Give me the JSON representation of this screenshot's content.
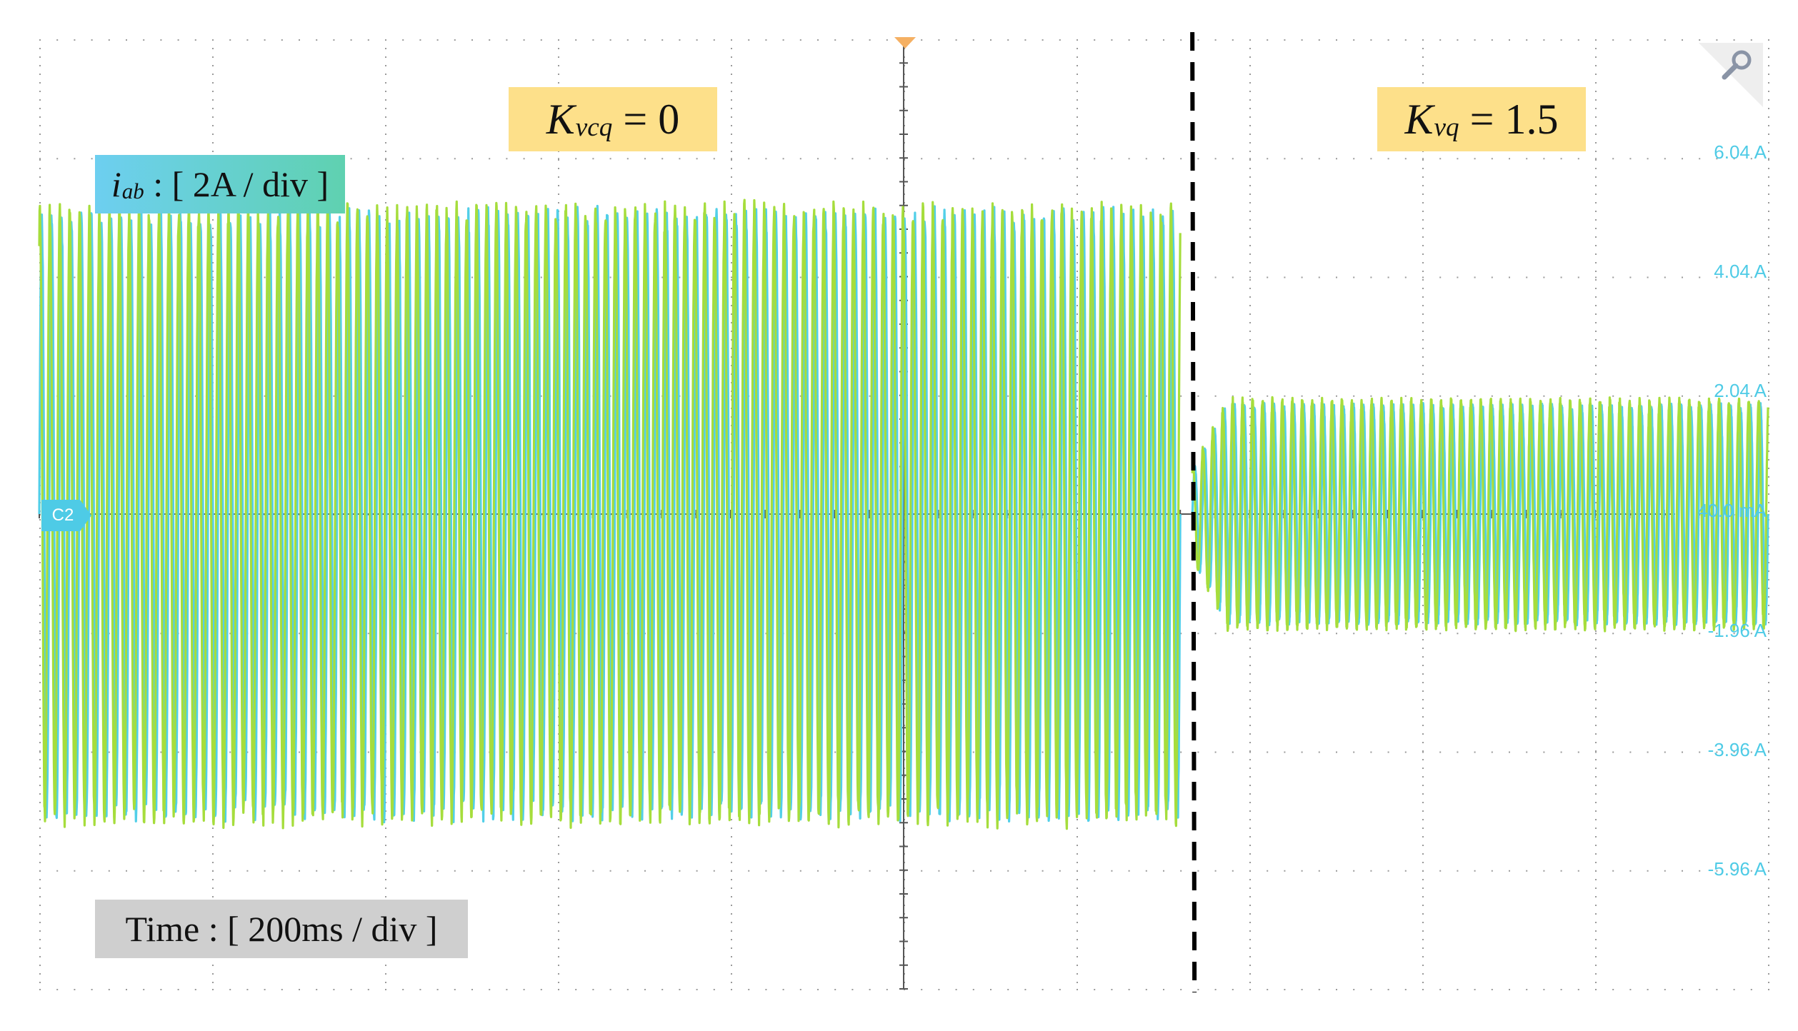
{
  "chart_data": {
    "type": "line",
    "title": "",
    "xlabel": "",
    "ylabel": "",
    "time_scale_label": "Time : [ 200ms / div ]",
    "current_scale": {
      "symbol": "i",
      "subscript": "ab",
      "rest": " : [ 2A / div ]"
    },
    "channel_label": "C2",
    "y_tick_labels": [
      "6.04 A",
      "4.04 A",
      "2.04 A",
      "40.0 mA",
      "-1.96 A",
      "-3.96 A",
      "-5.96 A"
    ],
    "y_tick_values": [
      6.04,
      4.04,
      2.04,
      0.04,
      -1.96,
      -3.96,
      -5.96
    ],
    "ylim": [
      -7.96,
      8.04
    ],
    "xlim_div": [
      -5,
      5
    ],
    "grid": true,
    "events": [
      {
        "x_div": 1.67,
        "style": "dashed",
        "color": "#000000"
      }
    ],
    "annotations": [
      {
        "id": "left",
        "symbol": "K",
        "subscript": "vcq",
        "rest": " = 0"
      },
      {
        "id": "right",
        "symbol": "K",
        "subscript": "vq",
        "rest": " = 1.5"
      }
    ],
    "series": [
      {
        "color": "#52cfe8",
        "segments": [
          {
            "x_start_div": -5.0,
            "x_end_div": 1.6,
            "amplitude": 5.0,
            "cycles": 115
          },
          {
            "x_start_div": 1.67,
            "x_end_div": 5.0,
            "amplitude": 1.8,
            "cycles": 58
          }
        ]
      },
      {
        "color": "#a6dd3c",
        "segments": [
          {
            "x_start_div": -5.0,
            "x_end_div": 1.6,
            "amplitude": 5.1,
            "cycles": 115
          },
          {
            "x_start_div": 1.67,
            "x_end_div": 5.0,
            "amplitude": 1.9,
            "cycles": 58
          }
        ]
      }
    ]
  }
}
